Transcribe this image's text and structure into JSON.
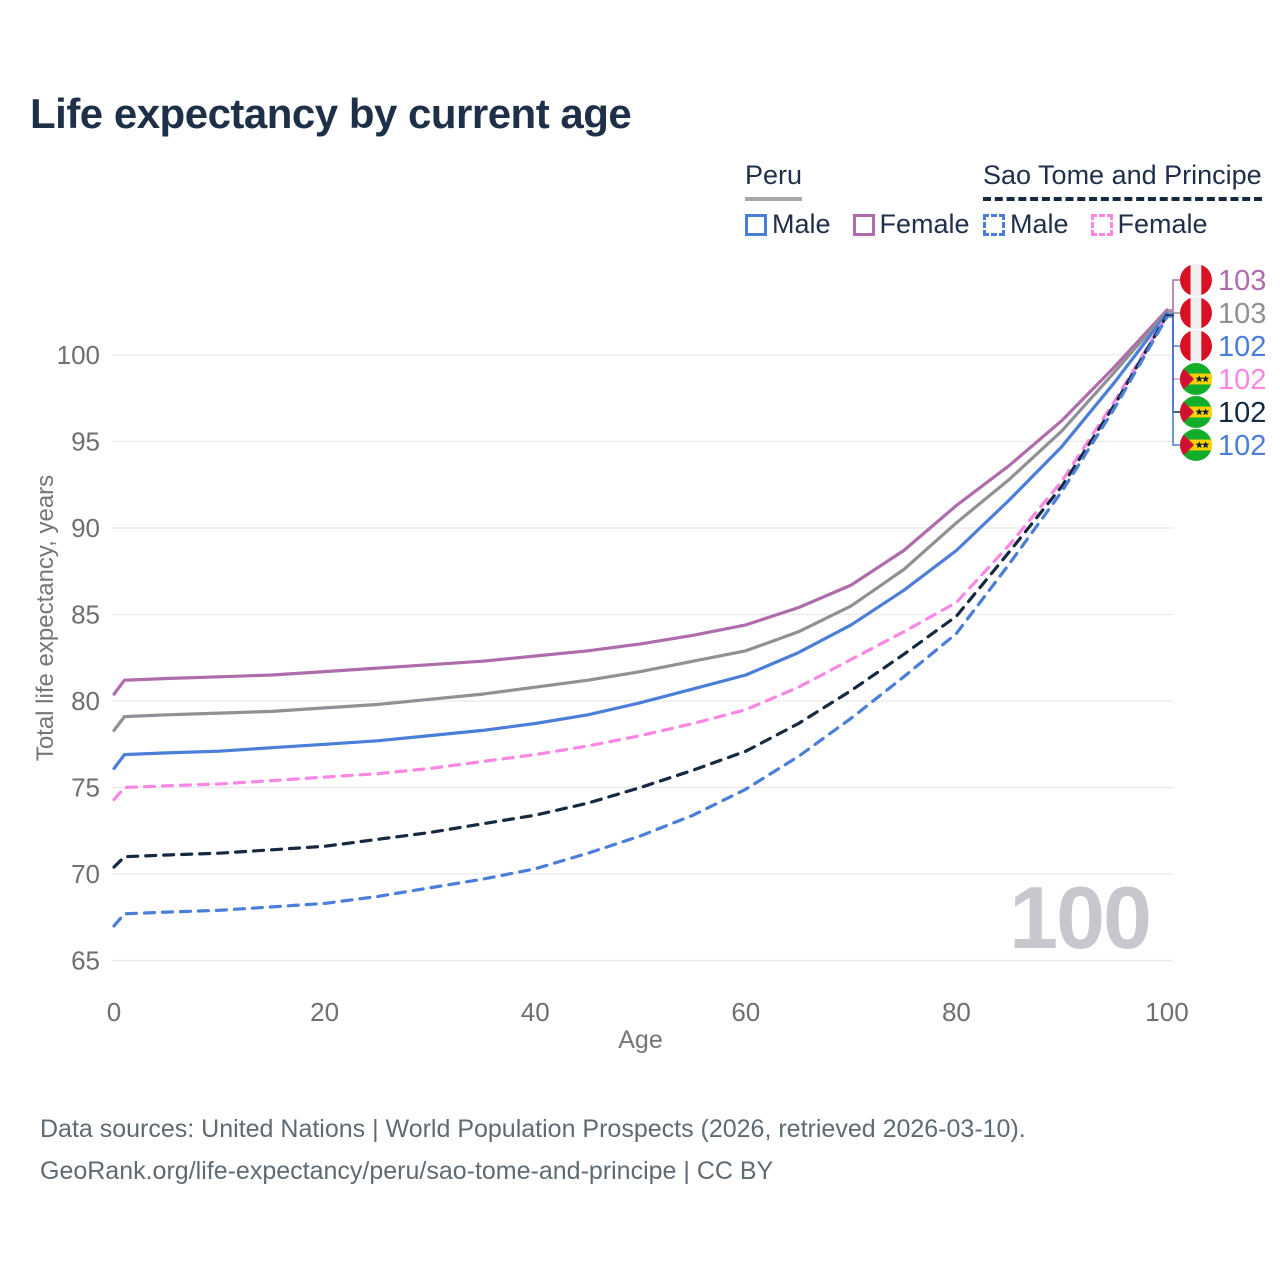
{
  "title": "Life expectancy by current age",
  "legend": {
    "groups": [
      {
        "name": "Peru",
        "line_style": "solid",
        "underline_color": "#a7a7a7",
        "items": [
          {
            "label": "Male",
            "color": "#4a7ed9"
          },
          {
            "label": "Female",
            "color": "#af6cac"
          }
        ]
      },
      {
        "name": "Sao Tome and Principe",
        "line_style": "dashed",
        "underline_color": "#15293f",
        "items": [
          {
            "label": "Male",
            "color": "#4a7ed9"
          },
          {
            "label": "Female",
            "color": "#fb87e4"
          }
        ]
      }
    ]
  },
  "watermark": "100",
  "footer": {
    "line1": "Data sources: United Nations | World Population Prospects (2026, retrieved 2026-03-10).",
    "line2": "GeoRank.org/life-expectancy/peru/sao-tome-and-principe | CC BY"
  },
  "chart_data": {
    "type": "line",
    "title": "Life expectancy by current age",
    "xlabel": "Age",
    "ylabel": "Total life expectancy, years",
    "xlim": [
      0,
      100
    ],
    "ylim": [
      65,
      103.5
    ],
    "xticks": [
      0,
      20,
      40,
      60,
      80,
      100
    ],
    "yticks": [
      65,
      70,
      75,
      80,
      85,
      90,
      95,
      100
    ],
    "grid": "horizontal",
    "legend_position": "top-right",
    "x": [
      0,
      1,
      5,
      10,
      15,
      20,
      25,
      30,
      35,
      40,
      45,
      50,
      55,
      60,
      65,
      70,
      75,
      80,
      85,
      90,
      95,
      100
    ],
    "series": [
      {
        "name": "Peru Female",
        "country": "Peru",
        "sex": "Female",
        "color": "#af6cac",
        "dash": "solid",
        "flag": "peru",
        "end_label": "103",
        "values": [
          80.4,
          81.2,
          81.3,
          81.4,
          81.5,
          81.7,
          81.9,
          82.1,
          82.3,
          82.6,
          82.9,
          83.3,
          83.8,
          84.4,
          85.4,
          86.7,
          88.7,
          91.3,
          93.6,
          96.2,
          99.3,
          102.6
        ]
      },
      {
        "name": "Peru Both sexes",
        "country": "Peru",
        "sex": "Both",
        "color": "#909095",
        "dash": "solid",
        "flag": "peru",
        "end_label": "103",
        "values": [
          78.3,
          79.1,
          79.2,
          79.3,
          79.4,
          79.6,
          79.8,
          80.1,
          80.4,
          80.8,
          81.2,
          81.7,
          82.3,
          82.9,
          84.0,
          85.5,
          87.6,
          90.3,
          92.8,
          95.6,
          99.0,
          102.5
        ]
      },
      {
        "name": "Peru Male",
        "country": "Peru",
        "sex": "Male",
        "color": "#4a7ed9",
        "dash": "solid",
        "flag": "peru",
        "end_label": "102",
        "values": [
          76.1,
          76.9,
          77.0,
          77.1,
          77.3,
          77.5,
          77.7,
          78.0,
          78.3,
          78.7,
          79.2,
          79.9,
          80.7,
          81.5,
          82.8,
          84.4,
          86.4,
          88.7,
          91.6,
          94.7,
          98.4,
          102.4
        ]
      },
      {
        "name": "Sao Tome and Principe Female",
        "country": "Sao Tome and Principe",
        "sex": "Female",
        "color": "#fb87e4",
        "dash": "dashed",
        "flag": "stp",
        "end_label": "102",
        "values": [
          74.3,
          75.0,
          75.1,
          75.2,
          75.4,
          75.6,
          75.8,
          76.1,
          76.5,
          76.9,
          77.4,
          78.0,
          78.7,
          79.5,
          80.8,
          82.4,
          84.0,
          85.7,
          89.0,
          92.7,
          97.3,
          102.3
        ]
      },
      {
        "name": "Sao Tome and Principe Both sexes",
        "country": "Sao Tome and Principe",
        "sex": "Both",
        "color": "#15293f",
        "dash": "dashed",
        "flag": "stp",
        "end_label": "102",
        "values": [
          70.4,
          71.0,
          71.1,
          71.2,
          71.4,
          71.6,
          72.0,
          72.4,
          72.9,
          73.4,
          74.1,
          75.0,
          76.0,
          77.1,
          78.7,
          80.6,
          82.7,
          84.9,
          88.6,
          92.4,
          97.1,
          102.3
        ]
      },
      {
        "name": "Sao Tome and Principe Male",
        "country": "Sao Tome and Principe",
        "sex": "Male",
        "color": "#4a7ed9",
        "dash": "dashed",
        "flag": "stp",
        "end_label": "102",
        "values": [
          67.0,
          67.7,
          67.8,
          67.9,
          68.1,
          68.3,
          68.7,
          69.2,
          69.7,
          70.3,
          71.2,
          72.2,
          73.4,
          74.9,
          76.8,
          79.0,
          81.4,
          83.9,
          87.9,
          92.1,
          96.9,
          102.2
        ]
      }
    ],
    "colors": {
      "peru_flag_red": "#d91023",
      "stp_green": "#12ad2b",
      "stp_yellow": "#ffd100",
      "stp_red": "#d21034",
      "grid": "#e9e9ec",
      "tick_text": "#6f6f73"
    }
  }
}
